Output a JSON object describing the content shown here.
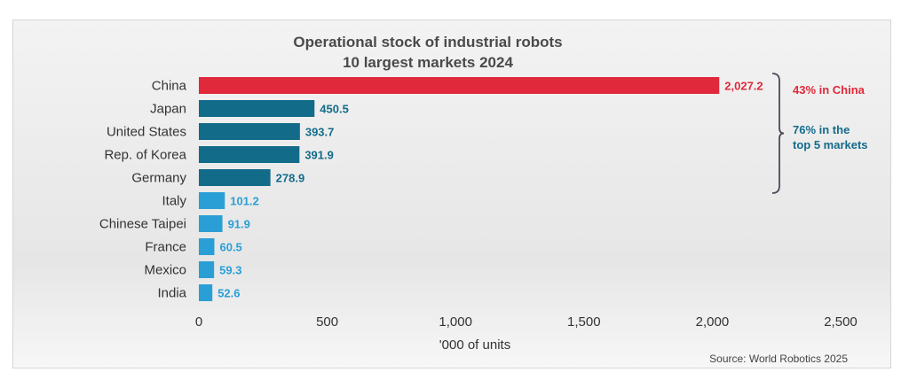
{
  "chart_data": {
    "type": "bar",
    "orientation": "horizontal",
    "title": "Operational stock of industrial robots",
    "subtitle": "10 largest markets 2024",
    "xlabel": "'000 of units",
    "ylabel": "",
    "xlim": [
      0,
      2500
    ],
    "xticks": [
      0,
      500,
      1000,
      1500,
      2000,
      2500
    ],
    "xtick_labels": [
      "0",
      "500",
      "1,000",
      "1,500",
      "2,000",
      "2,500"
    ],
    "grid": false,
    "categories": [
      "China",
      "Japan",
      "United States",
      "Rep. of Korea",
      "Germany",
      "Italy",
      "Chinese Taipei",
      "France",
      "Mexico",
      "India"
    ],
    "values": [
      2027.2,
      450.5,
      393.7,
      391.9,
      278.9,
      101.2,
      91.9,
      60.5,
      59.3,
      52.6
    ],
    "value_labels": [
      "2,027.2",
      "450.5",
      "393.7",
      "391.9",
      "278.9",
      "101.2",
      "91.9",
      "60.5",
      "59.3",
      "52.6"
    ],
    "bar_colors": [
      "#e0293b",
      "#136b8a",
      "#136b8a",
      "#136b8a",
      "#136b8a",
      "#2a9fd6",
      "#2a9fd6",
      "#2a9fd6",
      "#2a9fd6",
      "#2a9fd6"
    ],
    "annotations": [
      {
        "text": "43% in China",
        "color": "#e0293b",
        "applies_to": [
          "China"
        ]
      },
      {
        "text_lines": [
          "76% in the",
          "top 5 markets"
        ],
        "color": "#136b8a",
        "applies_to": [
          "China",
          "Japan",
          "United States",
          "Rep. of Korea",
          "Germany"
        ]
      }
    ]
  },
  "footer": {
    "source": "Source: World Robotics 2025"
  }
}
